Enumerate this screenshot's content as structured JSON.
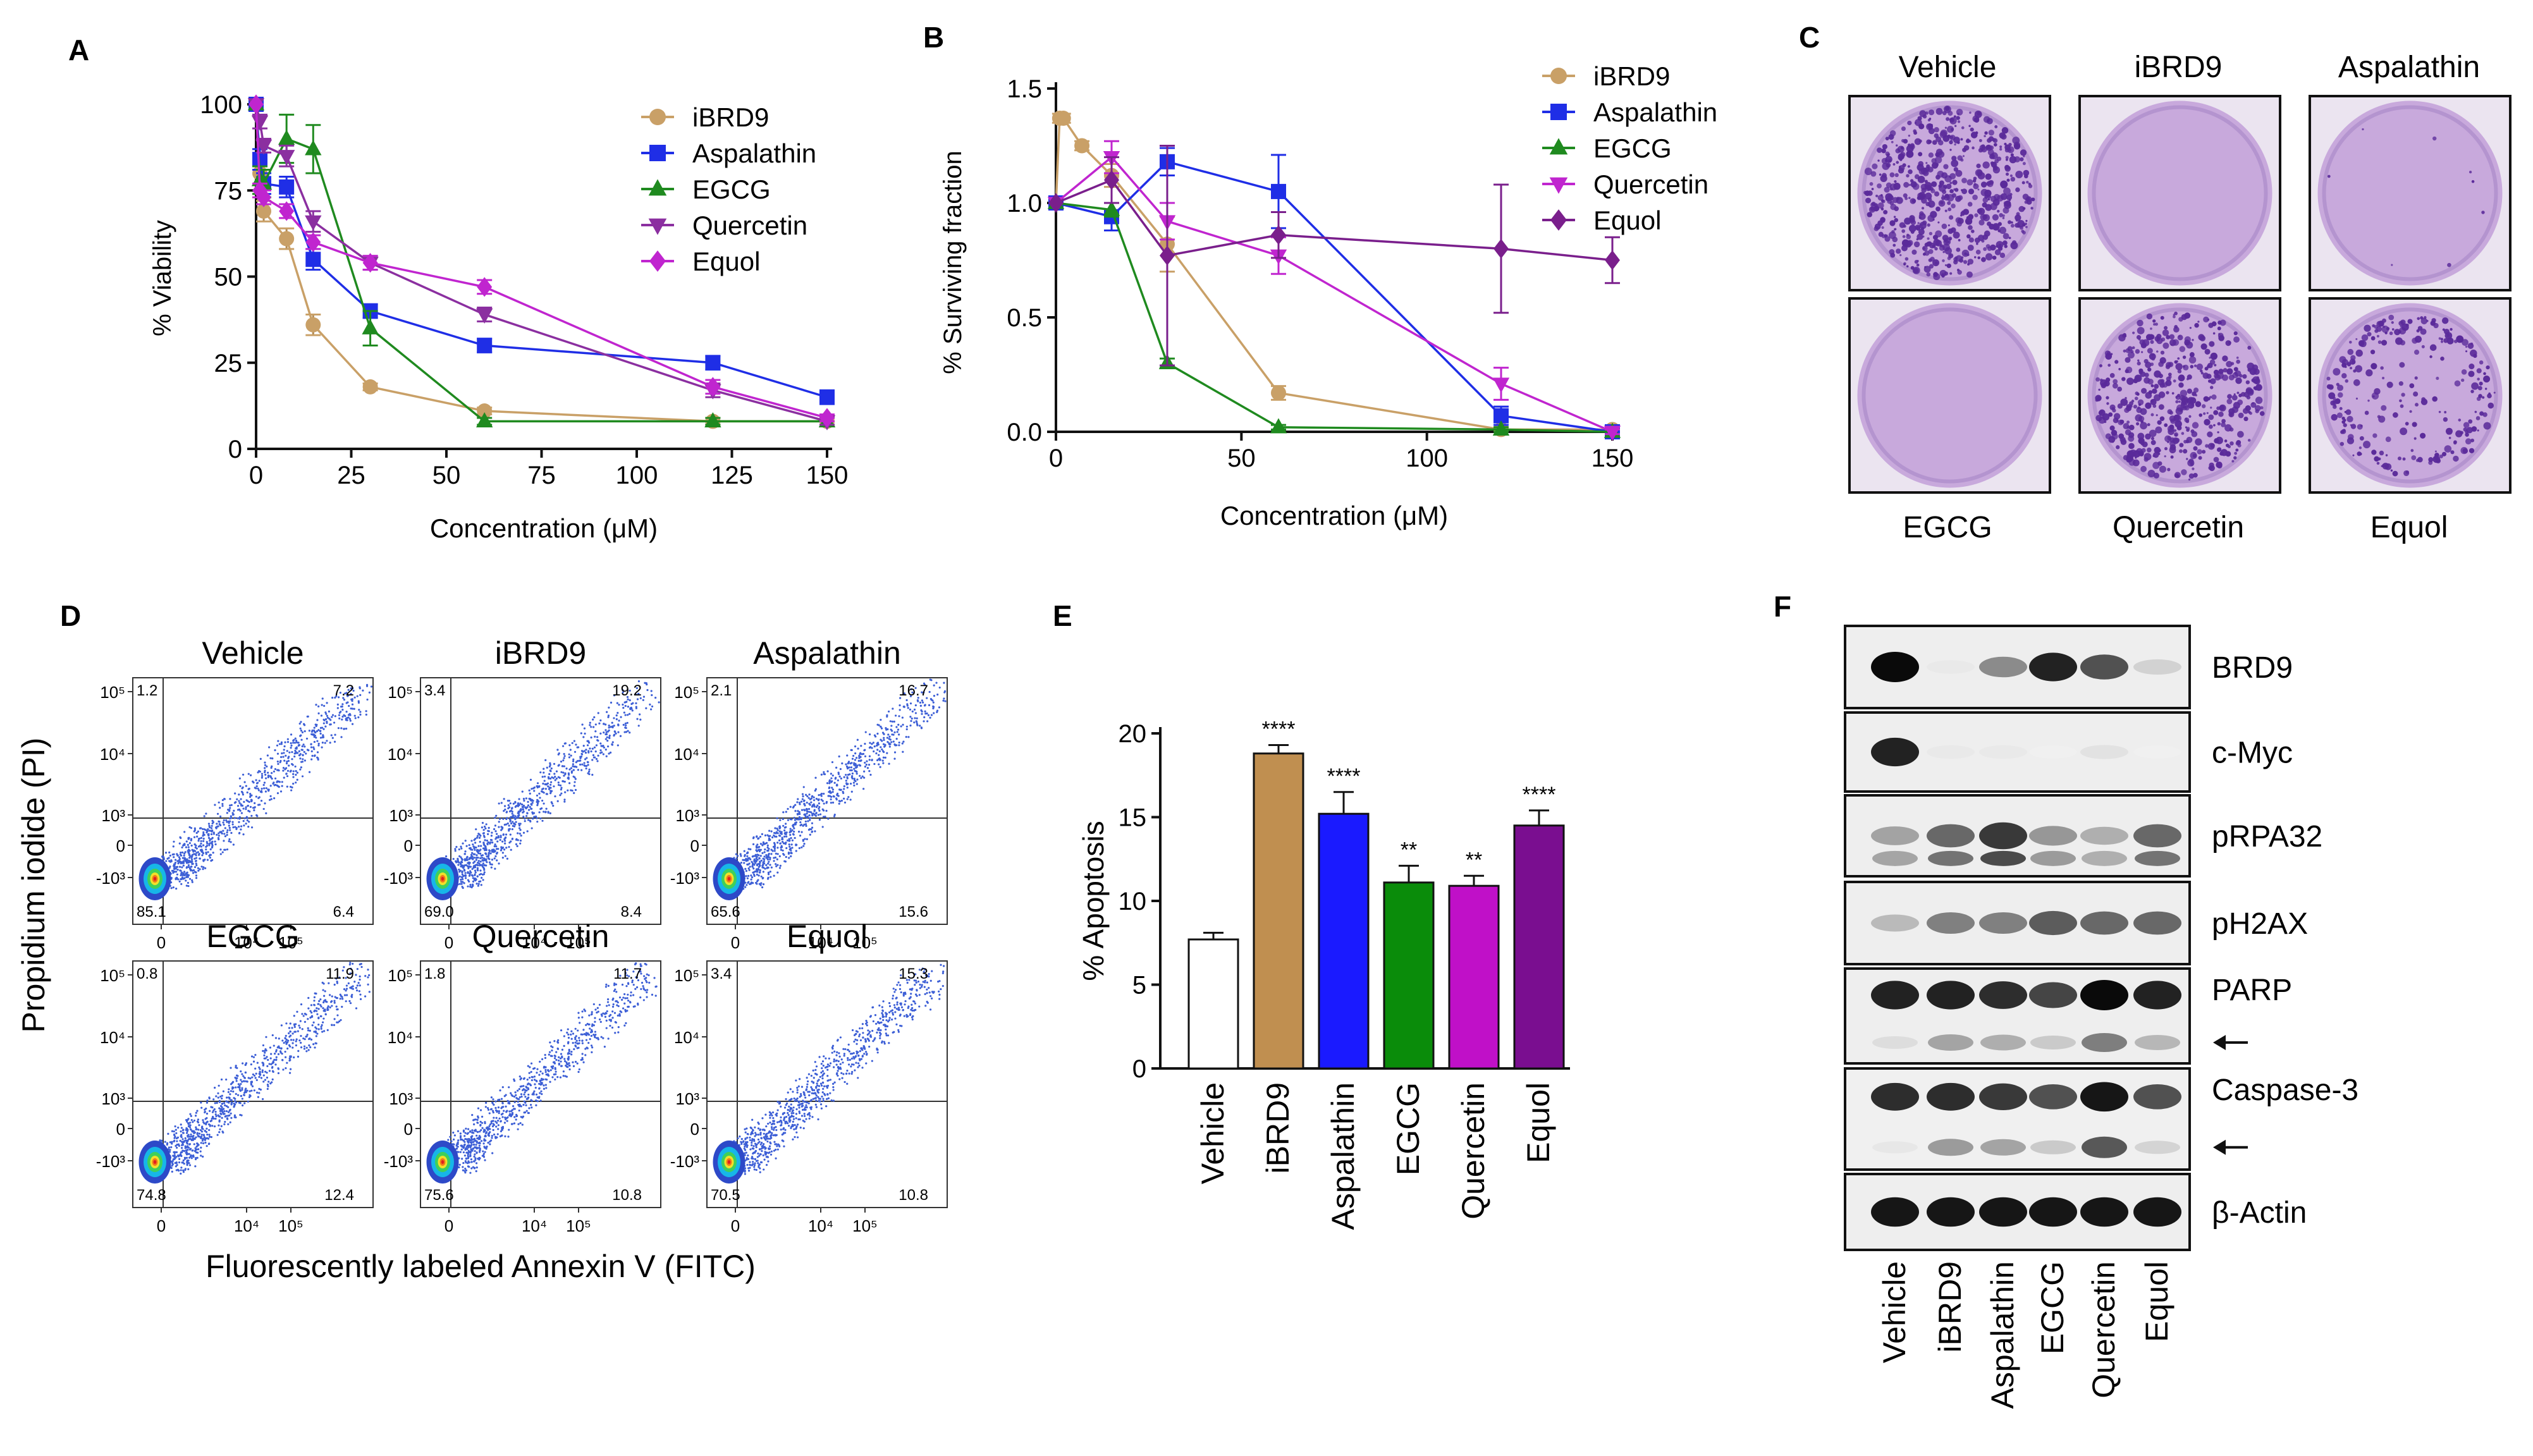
{
  "panels": {
    "A": {
      "letter": "A"
    },
    "B": {
      "letter": "B"
    },
    "C": {
      "letter": "C"
    },
    "D": {
      "letter": "D"
    },
    "E": {
      "letter": "E"
    },
    "F": {
      "letter": "F"
    }
  },
  "colors": {
    "iBRD9": "#c9a067",
    "Aspalathin": "#1f2ee6",
    "EGCG": "#1f8a1f",
    "Quercetin": "#8b2fa0",
    "Equol": "#c025cf",
    "plate_bg": "#c8a9dc",
    "plate_colony": "#5a2a9a",
    "flow_dot": "#3d5fd6"
  },
  "chart_data": [
    {
      "panel": "A",
      "type": "line",
      "title": "",
      "xlabel": "Concentration (μM)",
      "ylabel": "% Viability",
      "xlim": [
        0,
        150
      ],
      "ylim": [
        0,
        100
      ],
      "xticks": [
        "0",
        "25",
        "50",
        "75",
        "100",
        "125",
        "150"
      ],
      "yticks": [
        "0",
        "25",
        "50",
        "75",
        "100"
      ],
      "legend_position": "top-right",
      "series": [
        {
          "name": "iBRD9",
          "marker": "circle",
          "color": "#c9a067",
          "x": [
            0,
            1,
            2,
            8,
            15,
            30,
            60,
            120,
            150
          ],
          "y": [
            100,
            80,
            69,
            61,
            36,
            18,
            11,
            8,
            8
          ],
          "err": [
            0,
            3,
            3,
            3,
            3,
            1,
            1,
            1,
            1
          ]
        },
        {
          "name": "Aspalathin",
          "marker": "square",
          "color": "#1f2ee6",
          "x": [
            0,
            1,
            2,
            8,
            15,
            30,
            60,
            120,
            150
          ],
          "y": [
            100,
            84,
            77,
            76,
            55,
            40,
            30,
            25,
            15
          ],
          "err": [
            0,
            3,
            3,
            3,
            3,
            2,
            2,
            2,
            2
          ]
        },
        {
          "name": "EGCG",
          "marker": "triangle-up",
          "color": "#1f8a1f",
          "x": [
            0,
            1,
            2,
            8,
            15,
            30,
            60,
            120,
            150
          ],
          "y": [
            100,
            78,
            77,
            90,
            87,
            35,
            8,
            8,
            8
          ],
          "err": [
            0,
            4,
            4,
            7,
            7,
            5,
            1,
            1,
            1
          ]
        },
        {
          "name": "Quercetin",
          "marker": "triangle-down",
          "color": "#8b2fa0",
          "x": [
            0,
            1,
            2,
            8,
            15,
            30,
            60,
            120,
            150
          ],
          "y": [
            100,
            95,
            88,
            85,
            66,
            54,
            39,
            17,
            8
          ],
          "err": [
            0,
            2,
            2,
            3,
            3,
            2,
            2,
            2,
            1
          ]
        },
        {
          "name": "Equol",
          "marker": "diamond",
          "color": "#c025cf",
          "x": [
            0,
            1,
            2,
            8,
            15,
            30,
            60,
            120,
            150
          ],
          "y": [
            100,
            75,
            73,
            69,
            60,
            54,
            47,
            18,
            9
          ],
          "err": [
            0,
            2,
            2,
            2,
            2,
            2,
            2,
            2,
            1
          ]
        }
      ]
    },
    {
      "panel": "B",
      "type": "line",
      "title": "",
      "xlabel": "Concentration (μM)",
      "ylabel": "% Surviving fraction",
      "xlim": [
        0,
        150
      ],
      "ylim": [
        0,
        1.5
      ],
      "xticks": [
        "0",
        "50",
        "100",
        "150"
      ],
      "yticks": [
        "0.0",
        "0.5",
        "1.0",
        "1.5"
      ],
      "legend_position": "top-right",
      "series": [
        {
          "name": "iBRD9",
          "marker": "circle",
          "color": "#c9a067",
          "x": [
            0,
            1,
            2,
            7,
            15,
            30,
            60,
            120,
            150
          ],
          "y": [
            1.0,
            1.37,
            1.37,
            1.25,
            1.12,
            0.82,
            0.17,
            0.01,
            0.01
          ],
          "err": [
            0,
            0.02,
            0.02,
            0.02,
            0.05,
            0.12,
            0.03,
            0.01,
            0.01
          ]
        },
        {
          "name": "Aspalathin",
          "marker": "square",
          "color": "#1f2ee6",
          "x": [
            0,
            15,
            30,
            60,
            120,
            150
          ],
          "y": [
            1.0,
            0.94,
            1.18,
            1.05,
            0.07,
            0.0
          ],
          "err": [
            0,
            0.06,
            0.06,
            0.16,
            0.04,
            0.01
          ]
        },
        {
          "name": "EGCG",
          "marker": "triangle-up",
          "color": "#1f8a1f",
          "x": [
            0,
            15,
            30,
            60,
            120,
            150
          ],
          "y": [
            1.0,
            0.97,
            0.3,
            0.02,
            0.01,
            0.0
          ],
          "err": [
            0,
            0.03,
            0.02,
            0.01,
            0.01,
            0.01
          ]
        },
        {
          "name": "Quercetin",
          "marker": "triangle-down",
          "color": "#c025cf",
          "x": [
            0,
            15,
            30,
            60,
            120,
            150
          ],
          "y": [
            1.0,
            1.2,
            0.92,
            0.77,
            0.21,
            0.0
          ],
          "err": [
            0,
            0.07,
            0.08,
            0.08,
            0.07,
            0.01
          ]
        },
        {
          "name": "Equol",
          "marker": "diamond",
          "color": "#7a1f8c",
          "x": [
            0,
            15,
            30,
            60,
            120,
            150
          ],
          "y": [
            1.0,
            1.1,
            0.77,
            0.86,
            0.8,
            0.75
          ],
          "err": [
            0,
            0.1,
            0.48,
            0.1,
            0.28,
            0.1
          ]
        }
      ]
    },
    {
      "panel": "E",
      "type": "bar",
      "title": "",
      "xlabel": "",
      "ylabel": "% Apoptosis",
      "ylim": [
        0,
        20
      ],
      "yticks": [
        "0",
        "5",
        "10",
        "15",
        "20"
      ],
      "categories": [
        "Vehicle",
        "iBRD9",
        "Aspalathin",
        "EGCG",
        "Quercetin",
        "Equol"
      ],
      "values": [
        7.7,
        18.8,
        15.2,
        11.1,
        10.9,
        14.5
      ],
      "errors": [
        0.4,
        0.5,
        1.3,
        1.0,
        0.6,
        0.9
      ],
      "significance": [
        "",
        "****",
        "****",
        "**",
        "**",
        "****"
      ],
      "colors": [
        "#ffffff",
        "#c08f50",
        "#1a1aff",
        "#0a8c0a",
        "#c010c8",
        "#7a0e90"
      ]
    }
  ],
  "panelC": {
    "top_labels": [
      "Vehicle",
      "iBRD9",
      "Aspalathin"
    ],
    "bottom_labels": [
      "EGCG",
      "Quercetin",
      "Equol"
    ]
  },
  "panelD": {
    "ylabel": "Propidium iodide (PI)",
    "xlabel": "Fluorescently labeled Annexin V (FITC)",
    "y_ticks": [
      "10⁵",
      "10⁴",
      "10³",
      "0",
      "-10³"
    ],
    "x_ticks": [
      "0",
      "10⁴",
      "10⁵"
    ],
    "plots": [
      {
        "title": "Vehicle",
        "ul": "1.2",
        "ur": "7.2",
        "ll": "85.1",
        "lr": "6.4"
      },
      {
        "title": "iBRD9",
        "ul": "3.4",
        "ur": "19.2",
        "ll": "69.0",
        "lr": "8.4"
      },
      {
        "title": "Aspalathin",
        "ul": "2.1",
        "ur": "16.7",
        "ll": "65.6",
        "lr": "15.6"
      },
      {
        "title": "EGCG",
        "ul": "0.8",
        "ur": "11.9",
        "ll": "74.8",
        "lr": "12.4"
      },
      {
        "title": "Quercetin",
        "ul": "1.8",
        "ur": "11.7",
        "ll": "75.6",
        "lr": "10.8"
      },
      {
        "title": "Equol",
        "ul": "3.4",
        "ur": "15.3",
        "ll": "70.5",
        "lr": "10.8"
      }
    ]
  },
  "panelF": {
    "blots": [
      {
        "label": "BRD9",
        "intensity": [
          1.0,
          0.05,
          0.45,
          0.9,
          0.7,
          0.15
        ]
      },
      {
        "label": "c-Myc",
        "intensity": [
          0.9,
          0.05,
          0.05,
          0.02,
          0.08,
          0.02
        ]
      },
      {
        "label": "pRPA32",
        "intensity": [
          0.35,
          0.6,
          0.8,
          0.4,
          0.3,
          0.6
        ]
      },
      {
        "label": "pH2AX",
        "intensity": [
          0.25,
          0.5,
          0.5,
          0.65,
          0.6,
          0.6
        ]
      },
      {
        "label": "PARP",
        "intensity": [
          0.9,
          0.9,
          0.85,
          0.75,
          1.0,
          0.9
        ]
      },
      {
        "label": "Caspase-3",
        "intensity": [
          0.85,
          0.85,
          0.8,
          0.7,
          0.95,
          0.7
        ]
      },
      {
        "label": "β-Actin",
        "intensity": [
          0.95,
          0.95,
          0.95,
          0.95,
          0.95,
          0.95
        ]
      }
    ],
    "lanes": [
      "Vehicle",
      "iBRD9",
      "Aspalathin",
      "EGCG",
      "Quercetin",
      "Equol"
    ]
  }
}
